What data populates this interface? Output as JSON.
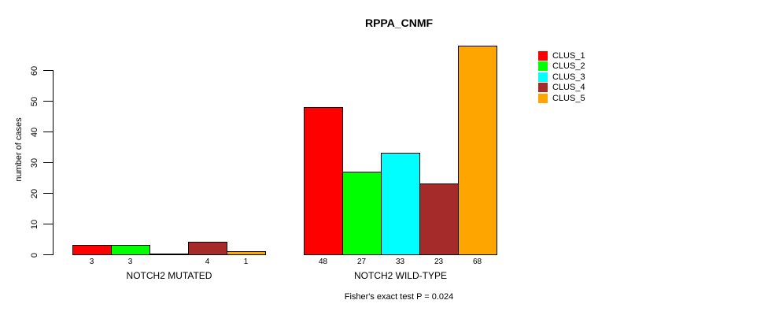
{
  "chart_data": {
    "type": "bar",
    "title": "RPPA_CNMF",
    "xlabel": "",
    "ylabel": "number of cases",
    "yticks": [
      0,
      10,
      20,
      30,
      40,
      50,
      60
    ],
    "ylim": [
      0,
      68
    ],
    "grid": false,
    "legend_position": "right",
    "bar_value_labels_shown": true,
    "categories": [
      "NOTCH2 MUTATED",
      "NOTCH2 WILD-TYPE"
    ],
    "groups": [
      {
        "label": "NOTCH2 MUTATED",
        "values": [
          3,
          3,
          0,
          4,
          1
        ]
      },
      {
        "label": "NOTCH2 WILD-TYPE",
        "values": [
          48,
          27,
          33,
          23,
          68
        ]
      }
    ],
    "series": [
      {
        "name": "CLUS_1",
        "color": "#FF0000"
      },
      {
        "name": "CLUS_2",
        "color": "#00FF00"
      },
      {
        "name": "CLUS_3",
        "color": "#00FFFF"
      },
      {
        "name": "CLUS_4",
        "color": "#A52A2A"
      },
      {
        "name": "CLUS_5",
        "color": "#FFA500"
      }
    ],
    "annotation": "Fisher's exact test P = 0.024",
    "axis_color": "#000000",
    "bar_border_color": "#000000"
  }
}
